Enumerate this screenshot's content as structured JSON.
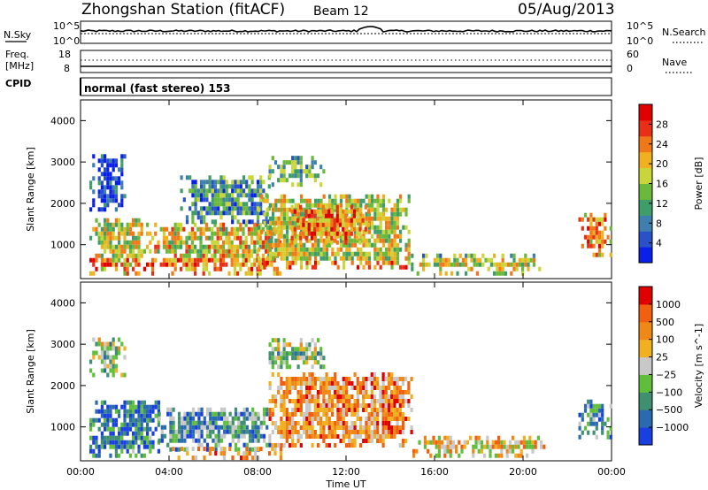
{
  "header": {
    "title": "Zhongshan Station (fitACF)",
    "beam": "Beam 12",
    "date": "05/Aug/2013"
  },
  "noise_panel": {
    "left_label": "N.Sky",
    "right_label": "N.Search",
    "left_ticks": [
      "10^5",
      "10^0"
    ],
    "right_ticks": [
      "10^5",
      "10^0"
    ]
  },
  "freq_panel": {
    "left_label_1": "Freq.",
    "left_label_2": "[MHz]",
    "right_label": "Nave",
    "left_ticks": [
      "18",
      "8"
    ],
    "right_ticks": [
      "60",
      "0"
    ]
  },
  "cpid": {
    "label": "CPID",
    "text": "normal (fast stereo) 153"
  },
  "chart_data": [
    {
      "type": "heatmap",
      "title": "",
      "xlabel": "Time UT",
      "ylabel": "Slant Range [km]",
      "xlim": [
        0,
        24
      ],
      "ylim": [
        180,
        4500
      ],
      "x_tick_labels": [
        "00:00",
        "04:00",
        "08:00",
        "12:00",
        "16:00",
        "20:00",
        "00:00"
      ],
      "y_tick_labels": [
        "1000",
        "2000",
        "3000",
        "4000"
      ],
      "y_ticks": [
        1000,
        2000,
        3000,
        4000
      ],
      "colorbar": {
        "label": "Power [dB]",
        "tick_labels": [
          "4",
          "8",
          "12",
          "16",
          "20",
          "24",
          "28"
        ],
        "range": [
          0,
          30
        ],
        "colors": [
          "#0a20e8",
          "#2a52c8",
          "#3f7fb0",
          "#3f9d6a",
          "#6ab93a",
          "#c8d63a",
          "#f0b020",
          "#f07818",
          "#e83018",
          "#e00000"
        ]
      },
      "regions": [
        {
          "t0": 0.4,
          "t1": 3.2,
          "r0": 250,
          "r1": 1600,
          "level": 0.55
        },
        {
          "t0": 0.4,
          "t1": 2.0,
          "r0": 1800,
          "r1": 3100,
          "level": 0.15
        },
        {
          "t0": 3.2,
          "t1": 9.0,
          "r0": 250,
          "r1": 1500,
          "level": 0.6
        },
        {
          "t0": 4.5,
          "t1": 8.5,
          "r0": 1500,
          "r1": 2600,
          "level": 0.3
        },
        {
          "t0": 8.5,
          "t1": 11.0,
          "r0": 2400,
          "r1": 3100,
          "level": 0.35
        },
        {
          "t0": 8.0,
          "t1": 14.8,
          "r0": 400,
          "r1": 2200,
          "level": 0.55
        },
        {
          "t0": 9.5,
          "t1": 13.0,
          "r0": 1000,
          "r1": 1900,
          "level": 0.75
        },
        {
          "t0": 14.8,
          "t1": 20.8,
          "r0": 250,
          "r1": 700,
          "level": 0.4
        },
        {
          "t0": 22.5,
          "t1": 24.0,
          "r0": 700,
          "r1": 1700,
          "level": 0.7
        }
      ]
    },
    {
      "type": "heatmap",
      "title": "",
      "xlabel": "Time UT",
      "ylabel": "Slant Range [km]",
      "xlim": [
        0,
        24
      ],
      "ylim": [
        180,
        4500
      ],
      "x_tick_labels": [
        "00:00",
        "04:00",
        "08:00",
        "12:00",
        "16:00",
        "20:00",
        "00:00"
      ],
      "y_tick_labels": [
        "1000",
        "2000",
        "3000",
        "4000"
      ],
      "y_ticks": [
        1000,
        2000,
        3000,
        4000
      ],
      "colorbar": {
        "label": "Velocity [m s^-1]",
        "tick_labels": [
          "1000",
          "500",
          "100",
          "25",
          "−25",
          "−100",
          "−500",
          "−1000"
        ],
        "colors": [
          "#1a3fe0",
          "#2a6ab0",
          "#3f8f70",
          "#5fbf3a",
          "#c8c8c8",
          "#f0b020",
          "#f08818",
          "#f06010",
          "#e00000"
        ]
      },
      "regions": [
        {
          "t0": 0.4,
          "t1": 3.5,
          "r0": 250,
          "r1": 1600,
          "level": 0.2
        },
        {
          "t0": 0.4,
          "t1": 2.0,
          "r0": 2200,
          "r1": 3100,
          "level": 0.45
        },
        {
          "t0": 3.5,
          "t1": 8.5,
          "r0": 400,
          "r1": 1400,
          "level": 0.3
        },
        {
          "t0": 4.0,
          "t1": 9.0,
          "r0": 200,
          "r1": 500,
          "level": 0.65
        },
        {
          "t0": 8.5,
          "t1": 11.0,
          "r0": 2400,
          "r1": 3100,
          "level": 0.45
        },
        {
          "t0": 8.5,
          "t1": 15.0,
          "r0": 500,
          "r1": 2300,
          "level": 0.7
        },
        {
          "t0": 15.0,
          "t1": 21.0,
          "r0": 250,
          "r1": 700,
          "level": 0.6
        },
        {
          "t0": 22.5,
          "t1": 24.0,
          "r0": 700,
          "r1": 1600,
          "level": 0.3
        }
      ]
    }
  ]
}
